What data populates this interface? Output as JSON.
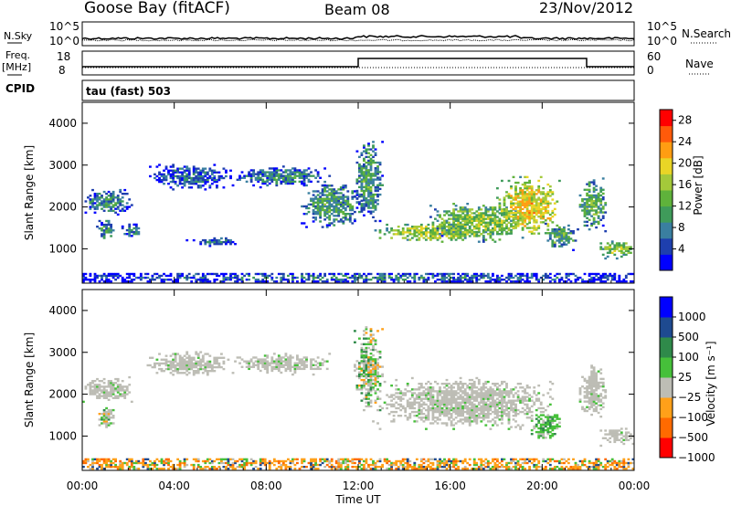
{
  "header": {
    "station": "Goose Bay (fitACF)",
    "beam": "Beam 08",
    "date": "23/Nov/2012"
  },
  "noise_panel": {
    "left_label": "N.Sky",
    "right_label": "N.Search",
    "left_ticks": [
      "10^5",
      "10^0"
    ],
    "right_ticks": [
      "10^5",
      "10^0"
    ]
  },
  "freq_panel": {
    "left_label_1": "Freq.",
    "left_label_2": "[MHz]",
    "left_ticks": [
      "18",
      "8"
    ],
    "right_label": "Nave",
    "right_ticks": [
      "60",
      "0"
    ]
  },
  "cpid": {
    "label": "CPID",
    "text": "tau (fast) 503"
  },
  "chart_data": [
    {
      "type": "heatmap",
      "name": "power",
      "ylabel": "Slant Range [km]",
      "yticks": [
        "4000",
        "3000",
        "2000",
        "1000"
      ],
      "ylim": [
        180,
        4500
      ],
      "xlim": [
        0,
        24
      ],
      "colorbar": {
        "label": "Power [dB]",
        "ticks": [
          "28",
          "24",
          "20",
          "16",
          "12",
          "8",
          "4"
        ],
        "range": [
          0,
          30
        ],
        "colors": [
          "#0000ff",
          "#1e3fae",
          "#3a7fa0",
          "#3f9b5a",
          "#5fb23b",
          "#a4c93a",
          "#e9d526",
          "#ff9d12",
          "#ff5a0a",
          "#ff0000"
        ]
      },
      "echo_regions": [
        {
          "t": [
            0.0,
            2.2
          ],
          "r": [
            1800,
            2400
          ],
          "v": 9
        },
        {
          "t": [
            0.6,
            1.4
          ],
          "r": [
            1150,
            1700
          ],
          "v": 10
        },
        {
          "t": [
            1.7,
            2.5
          ],
          "r": [
            1200,
            1600
          ],
          "v": 9
        },
        {
          "t": [
            2.8,
            6.5
          ],
          "r": [
            2400,
            3000
          ],
          "v": 7
        },
        {
          "t": [
            4.5,
            6.8
          ],
          "r": [
            1050,
            1250
          ],
          "v": 7
        },
        {
          "t": [
            6.5,
            10.8
          ],
          "r": [
            2450,
            2950
          ],
          "v": 8
        },
        {
          "t": [
            9.5,
            12.2
          ],
          "r": [
            1500,
            2600
          ],
          "v": 11
        },
        {
          "t": [
            11.8,
            13.0
          ],
          "r": [
            1600,
            3600
          ],
          "v": 11
        },
        {
          "t": [
            12.6,
            18.0
          ],
          "r": [
            1150,
            1600
          ],
          "v": 17
        },
        {
          "t": [
            15.0,
            19.5
          ],
          "r": [
            1200,
            2100
          ],
          "v": 15
        },
        {
          "t": [
            18.0,
            20.8
          ],
          "r": [
            1300,
            2700
          ],
          "v": 20
        },
        {
          "t": [
            20.0,
            21.5
          ],
          "r": [
            950,
            1600
          ],
          "v": 12
        },
        {
          "t": [
            21.5,
            22.8
          ],
          "r": [
            1400,
            2700
          ],
          "v": 13
        },
        {
          "t": [
            22.5,
            24.0
          ],
          "r": [
            750,
            1200
          ],
          "v": 16
        },
        {
          "t": [
            0.0,
            24.0
          ],
          "r": [
            200,
            400
          ],
          "v": 8
        }
      ]
    },
    {
      "type": "heatmap",
      "name": "velocity",
      "ylabel": "Slant Range [km]",
      "yticks": [
        "4000",
        "3000",
        "2000",
        "1000"
      ],
      "ylim": [
        180,
        4500
      ],
      "xlim": [
        0,
        24
      ],
      "colorbar": {
        "label": "Velocity [m s⁻¹]",
        "ticks": [
          "1000",
          "500",
          "100",
          "25",
          "−25",
          "−100",
          "−500",
          "−1000"
        ],
        "colors": [
          "#0000ff",
          "#1e4a90",
          "#2f8a4a",
          "#46c03a",
          "#bdbdb5",
          "#ffa019",
          "#ff6a00",
          "#ff0000"
        ]
      },
      "echo_regions": [
        {
          "t": [
            0.0,
            2.2
          ],
          "r": [
            1800,
            2400
          ],
          "c": "ground"
        },
        {
          "t": [
            0.6,
            1.4
          ],
          "r": [
            1150,
            1700
          ],
          "c": "mixed"
        },
        {
          "t": [
            2.8,
            6.5
          ],
          "r": [
            2400,
            3000
          ],
          "c": "ground"
        },
        {
          "t": [
            6.5,
            10.8
          ],
          "r": [
            2450,
            2950
          ],
          "c": "ground"
        },
        {
          "t": [
            11.8,
            13.0
          ],
          "r": [
            1600,
            3600
          ],
          "c": "mixed"
        },
        {
          "t": [
            12.6,
            20.5
          ],
          "r": [
            1150,
            2400
          ],
          "c": "ground"
        },
        {
          "t": [
            19.5,
            20.8
          ],
          "r": [
            850,
            1600
          ],
          "c": "positive"
        },
        {
          "t": [
            21.5,
            22.8
          ],
          "r": [
            1400,
            2700
          ],
          "c": "ground"
        },
        {
          "t": [
            22.5,
            24.0
          ],
          "r": [
            750,
            1200
          ],
          "c": "ground"
        },
        {
          "t": [
            0.0,
            24.0
          ],
          "r": [
            200,
            450
          ],
          "c": "low"
        }
      ]
    }
  ],
  "xaxis": {
    "ticks": [
      "00:00",
      "04:00",
      "08:00",
      "12:00",
      "16:00",
      "20:00",
      "00:00"
    ],
    "label": "Time UT"
  }
}
